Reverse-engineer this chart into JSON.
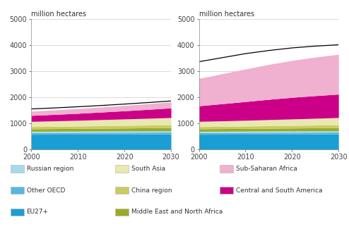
{
  "years": [
    2000,
    2005,
    2010,
    2015,
    2020,
    2025,
    2030
  ],
  "left_title": "million hectares",
  "right_title": "million hectares",
  "xlim": [
    2000,
    2030
  ],
  "ylim": [
    0,
    5000
  ],
  "yticks": [
    0,
    1000,
    2000,
    3000,
    4000,
    5000
  ],
  "xticks": [
    2000,
    2010,
    2020,
    2030
  ],
  "stack_order": [
    "EU27+",
    "Other OECD",
    "Russian region",
    "Middle East and North Africa",
    "China region",
    "South Asia",
    "Central and South America",
    "Sub-Saharan Africa"
  ],
  "colors": [
    "#1a9ed4",
    "#56b8e0",
    "#a8d8ee",
    "#9aaa28",
    "#c8cc60",
    "#e8e8b0",
    "#cc0088",
    "#f0b0d0"
  ],
  "left_data": [
    [
      580,
      582,
      584,
      586,
      588,
      590,
      592
    ],
    [
      65,
      66,
      67,
      68,
      69,
      70,
      71
    ],
    [
      50,
      51,
      52,
      53,
      54,
      55,
      56
    ],
    [
      95,
      98,
      101,
      105,
      109,
      113,
      117
    ],
    [
      85,
      88,
      92,
      96,
      100,
      104,
      108
    ],
    [
      200,
      210,
      222,
      235,
      248,
      262,
      278
    ],
    [
      230,
      248,
      268,
      290,
      315,
      342,
      372
    ],
    [
      165,
      172,
      182,
      193,
      205,
      218,
      232
    ]
  ],
  "right_data": [
    [
      580,
      582,
      584,
      586,
      588,
      590,
      592
    ],
    [
      65,
      66,
      67,
      68,
      69,
      70,
      71
    ],
    [
      50,
      51,
      52,
      53,
      54,
      55,
      56
    ],
    [
      95,
      98,
      101,
      105,
      109,
      113,
      117
    ],
    [
      85,
      88,
      92,
      96,
      100,
      104,
      108
    ],
    [
      200,
      210,
      222,
      235,
      248,
      262,
      278
    ],
    [
      600,
      660,
      720,
      780,
      830,
      870,
      900
    ],
    [
      1050,
      1150,
      1250,
      1340,
      1420,
      1480,
      1530
    ]
  ],
  "top_line_left": [
    1555,
    1595,
    1640,
    1688,
    1742,
    1800,
    1862
  ],
  "top_line_right": [
    3370,
    3525,
    3680,
    3800,
    3900,
    3970,
    4020
  ],
  "legend_col1": [
    [
      "Russian region",
      "#a8d8ee"
    ],
    [
      "Other OECD",
      "#56b8e0"
    ],
    [
      "EU27+",
      "#1a9ed4"
    ]
  ],
  "legend_col2": [
    [
      "South Asia",
      "#e8e8b0"
    ],
    [
      "China region",
      "#c8cc60"
    ],
    [
      "Middle East and North Africa",
      "#9aaa28"
    ]
  ],
  "legend_col3": [
    [
      "Sub-Saharan Africa",
      "#f0b0d0"
    ],
    [
      "Central and South America",
      "#cc0088"
    ]
  ]
}
